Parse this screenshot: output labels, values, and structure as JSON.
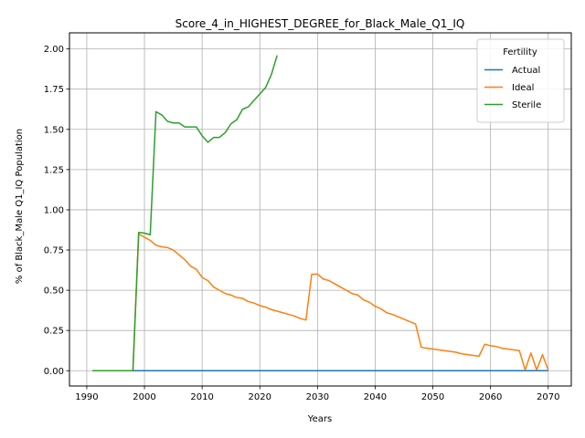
{
  "chart_data": {
    "type": "line",
    "title": "Score_4_in_HIGHEST_DEGREE_for_Black_Male_Q1_IQ",
    "xlabel": "Years",
    "ylabel": "% of Black_Male Q1_IQ Population",
    "xlim": [
      1987,
      2074
    ],
    "ylim": [
      -0.095,
      2.1
    ],
    "xticks": [
      1990,
      2000,
      2010,
      2020,
      2030,
      2040,
      2050,
      2060,
      2070
    ],
    "yticks": [
      0.0,
      0.25,
      0.5,
      0.75,
      1.0,
      1.25,
      1.5,
      1.75,
      2.0
    ],
    "ytick_labels": [
      "0.00",
      "0.25",
      "0.50",
      "0.75",
      "1.00",
      "1.25",
      "1.50",
      "1.75",
      "2.00"
    ],
    "grid": true,
    "legend": {
      "title": "Fertility",
      "placement": "top-right"
    },
    "series": [
      {
        "name": "Actual",
        "color": "#1f77b4",
        "x": [
          1991,
          2070
        ],
        "y": [
          0.0,
          0.0
        ]
      },
      {
        "name": "Ideal",
        "color": "#ff7f0e",
        "x": [
          1991,
          1998,
          1999,
          2000,
          2001,
          2002,
          2003,
          2004,
          2005,
          2006,
          2007,
          2008,
          2009,
          2010,
          2011,
          2012,
          2013,
          2014,
          2015,
          2016,
          2017,
          2018,
          2019,
          2020,
          2021,
          2022,
          2023,
          2024,
          2025,
          2026,
          2027,
          2028,
          2029,
          2030,
          2031,
          2032,
          2033,
          2034,
          2035,
          2036,
          2037,
          2038,
          2039,
          2040,
          2041,
          2042,
          2043,
          2044,
          2045,
          2046,
          2047,
          2048,
          2049,
          2050,
          2051,
          2052,
          2053,
          2054,
          2055,
          2056,
          2057,
          2058,
          2059,
          2060,
          2061,
          2062,
          2063,
          2064,
          2065,
          2066,
          2067,
          2068,
          2069,
          2070
        ],
        "y": [
          0.0,
          0.0,
          0.85,
          0.83,
          0.81,
          0.78,
          0.77,
          0.765,
          0.75,
          0.72,
          0.69,
          0.65,
          0.63,
          0.58,
          0.56,
          0.52,
          0.5,
          0.48,
          0.47,
          0.455,
          0.45,
          0.43,
          0.42,
          0.405,
          0.395,
          0.38,
          0.37,
          0.36,
          0.35,
          0.34,
          0.325,
          0.315,
          0.6,
          0.6,
          0.57,
          0.56,
          0.54,
          0.52,
          0.5,
          0.48,
          0.47,
          0.44,
          0.425,
          0.4,
          0.385,
          0.36,
          0.35,
          0.335,
          0.32,
          0.305,
          0.29,
          0.145,
          0.14,
          0.135,
          0.13,
          0.125,
          0.12,
          0.115,
          0.105,
          0.1,
          0.095,
          0.09,
          0.165,
          0.155,
          0.15,
          0.14,
          0.135,
          0.13,
          0.125,
          0.005,
          0.11,
          0.005,
          0.1,
          0.005
        ]
      },
      {
        "name": "Sterile",
        "color": "#2ca02c",
        "x": [
          1991,
          1998,
          1999,
          2000,
          2001,
          2002,
          2003,
          2004,
          2005,
          2006,
          2007,
          2008,
          2009,
          2010,
          2011,
          2012,
          2013,
          2014,
          2015,
          2016,
          2017,
          2018,
          2019,
          2020,
          2021,
          2022,
          2023
        ],
        "y": [
          0.0,
          0.0,
          0.86,
          0.855,
          0.845,
          1.61,
          1.59,
          1.55,
          1.54,
          1.54,
          1.515,
          1.515,
          1.515,
          1.46,
          1.42,
          1.45,
          1.45,
          1.48,
          1.535,
          1.56,
          1.625,
          1.64,
          1.68,
          1.72,
          1.76,
          1.84,
          1.96
        ]
      }
    ]
  }
}
